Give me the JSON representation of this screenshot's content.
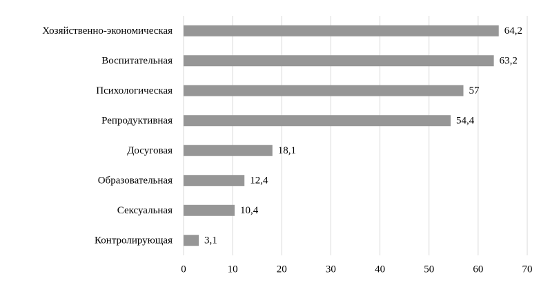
{
  "chart_data": {
    "type": "bar",
    "orientation": "horizontal",
    "categories": [
      "Хозяйственно-экономическая",
      "Воспитательная",
      "Психологическая",
      "Репродуктивная",
      "Досуговая",
      "Образовательная",
      "Сексуальная",
      "Контролирующая"
    ],
    "values": [
      64.2,
      63.2,
      57,
      54.4,
      18.1,
      12.4,
      10.4,
      3.1
    ],
    "value_labels": [
      "64,2",
      "63,2",
      "57",
      "54,4",
      "18,1",
      "12,4",
      "10,4",
      "3,1"
    ],
    "color": "#969696",
    "xlim": [
      0,
      70
    ],
    "xticks": [
      0,
      10,
      20,
      30,
      40,
      50,
      60,
      70
    ],
    "grid": true
  }
}
